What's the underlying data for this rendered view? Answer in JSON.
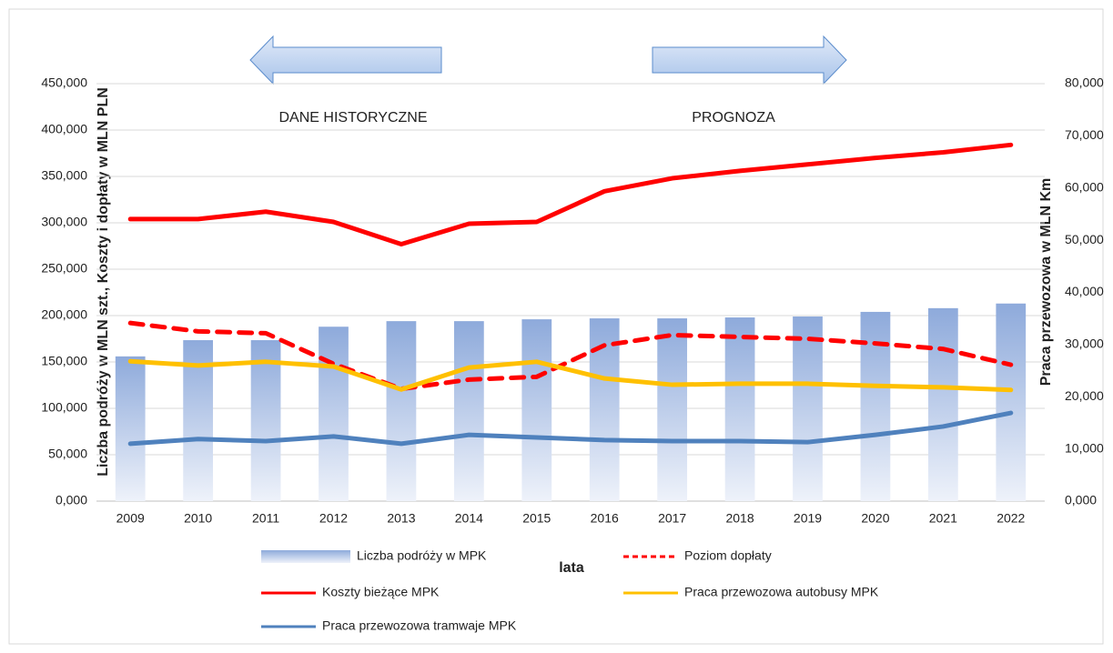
{
  "chart_data": {
    "type": "combo",
    "xlabel": "lata",
    "ylabel": "Liczba podróży w MLN szt., Koszty i dopłaty w MLN PLN",
    "y2label": "Praca przewozowa w MLN Km",
    "annotations": [
      "DANE HISTORYCZNE",
      "PROGNOZA"
    ],
    "categories": [
      "2009",
      "2010",
      "2011",
      "2012",
      "2013",
      "2014",
      "2015",
      "2016",
      "2017",
      "2018",
      "2019",
      "2020",
      "2021",
      "2022"
    ],
    "ylim": [
      0,
      450
    ],
    "yticks": [
      {
        "value": 0,
        "label": "0,000"
      },
      {
        "value": 50,
        "label": "50,000"
      },
      {
        "value": 100,
        "label": "100,000"
      },
      {
        "value": 150,
        "label": "150,000"
      },
      {
        "value": 200,
        "label": "200,000"
      },
      {
        "value": 250,
        "label": "250,000"
      },
      {
        "value": 300,
        "label": "300,000"
      },
      {
        "value": 350,
        "label": "350,000"
      },
      {
        "value": 400,
        "label": "400,000"
      },
      {
        "value": 450,
        "label": "450,000"
      }
    ],
    "y2lim": [
      0,
      80
    ],
    "y2ticks": [
      {
        "value": 0,
        "label": "0,000"
      },
      {
        "value": 10,
        "label": "10,000"
      },
      {
        "value": 20,
        "label": "20,000"
      },
      {
        "value": 30,
        "label": "30,000"
      },
      {
        "value": 40,
        "label": "40,000"
      },
      {
        "value": 50,
        "label": "50,000"
      },
      {
        "value": 60,
        "label": "60,000"
      },
      {
        "value": 70,
        "label": "70,000"
      },
      {
        "value": 80,
        "label": "80,000"
      }
    ],
    "grid": true,
    "legend": "bottom",
    "series": [
      {
        "name": "Liczba podróży w MPK",
        "type": "bar",
        "color": "#8eaadb",
        "values": [
          156,
          173.5,
          173.5,
          188,
          194,
          194,
          196,
          197,
          197,
          198,
          199,
          204,
          208,
          213
        ]
      },
      {
        "name": "Poziom dopłaty",
        "type": "line",
        "dashed": true,
        "color": "#ff0000",
        "values": [
          192,
          183,
          181,
          148,
          121,
          131,
          134,
          168,
          179,
          177,
          175,
          170,
          164,
          147
        ]
      },
      {
        "name": "Koszty bieżące MPK",
        "type": "line",
        "color": "#ff0000",
        "values": [
          304,
          304,
          312,
          301,
          277,
          299,
          301,
          334,
          348,
          356,
          363,
          370,
          376,
          384
        ]
      },
      {
        "name": "Praca przewozowa autobusy MPK",
        "type": "line",
        "axis": "y2",
        "color": "#ffc000",
        "values": [
          26.8,
          26.0,
          26.7,
          25.8,
          21.4,
          25.6,
          26.7,
          23.5,
          22.3,
          22.5,
          22.5,
          22.1,
          21.8,
          21.3
        ]
      },
      {
        "name": "Praca przewozowa tramwaje MPK",
        "type": "line",
        "axis": "y2",
        "color": "#4f81bd",
        "values": [
          11.0,
          11.9,
          11.5,
          12.4,
          11.0,
          12.7,
          12.2,
          11.7,
          11.5,
          11.5,
          11.3,
          12.7,
          14.3,
          16.9
        ]
      }
    ]
  }
}
